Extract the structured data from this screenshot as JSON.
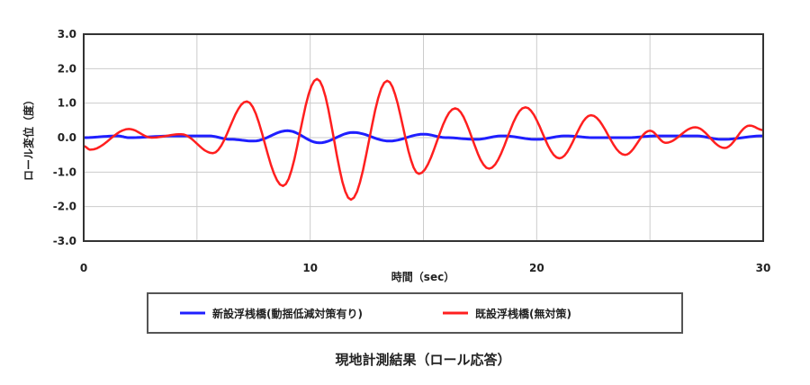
{
  "chart_data": {
    "type": "line",
    "title": "現地計測結果（ロール応答）",
    "xlabel": "時間（sec）",
    "ylabel": "ロール変位（度）",
    "xlim": [
      0,
      30
    ],
    "ylim": [
      -3.0,
      3.0
    ],
    "xticks": [
      "0",
      "10",
      "20",
      "30"
    ],
    "yticks": [
      "3.0",
      "2.0",
      "1.0",
      "0.0",
      "-1.0",
      "-2.0",
      "-3.0"
    ],
    "grid": true,
    "legend": "bottom",
    "series": [
      {
        "name": "新設浮桟橋(動揺低減対策有り)",
        "color": "#1f1fff",
        "x": [
          0,
          1.5,
          2.0,
          4.0,
          5.5,
          6.5,
          7.5,
          9.0,
          10.4,
          11.9,
          13.5,
          15.0,
          16.0,
          17.3,
          18.5,
          20.0,
          21.3,
          22.5,
          24.0,
          25.3,
          27.0,
          28.2,
          30.0
        ],
        "y": [
          0.0,
          0.05,
          0.0,
          0.05,
          0.05,
          -0.05,
          -0.1,
          0.2,
          -0.15,
          0.15,
          -0.1,
          0.1,
          0.0,
          -0.05,
          0.05,
          -0.05,
          0.05,
          0.0,
          0.0,
          0.05,
          0.05,
          -0.05,
          0.05
        ]
      },
      {
        "name": "既設浮桟橋(無対策)",
        "color": "#ff1f1f",
        "x": [
          0,
          0.3,
          2.0,
          3.0,
          4.3,
          5.7,
          7.2,
          8.8,
          10.3,
          11.8,
          13.4,
          14.8,
          16.4,
          17.9,
          19.5,
          21.0,
          22.4,
          23.9,
          25.0,
          25.7,
          27.0,
          28.3,
          29.4,
          30.0
        ],
        "y": [
          -0.25,
          -0.35,
          0.25,
          0.0,
          0.1,
          -0.45,
          1.05,
          -1.4,
          1.7,
          -1.8,
          1.65,
          -1.05,
          0.85,
          -0.9,
          0.88,
          -0.6,
          0.65,
          -0.5,
          0.2,
          -0.15,
          0.3,
          -0.3,
          0.35,
          0.22
        ]
      }
    ]
  }
}
